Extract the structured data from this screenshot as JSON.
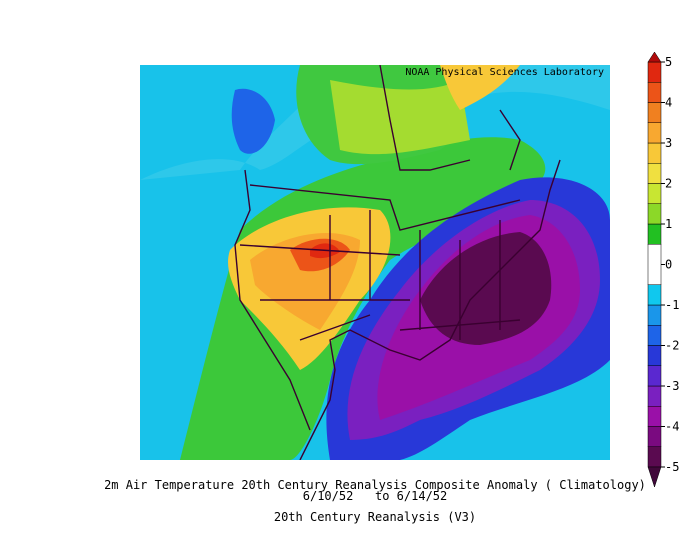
{
  "credit": "NOAA Physical Sciences Laboratory",
  "caption": [
    "2m Air Temperature 20th Century Reanalysis Composite Anomaly ( Climatology)",
    "6/10/52   to 6/14/52",
    "20th Century Reanalysis (V3)"
  ],
  "colorbar": {
    "levels": [
      -5,
      -4.5,
      -4,
      -3.5,
      -3,
      -2.5,
      -2,
      -1.5,
      -1,
      -0.5,
      0.5,
      1,
      1.5,
      2,
      2.5,
      3,
      3.5,
      4,
      4.5,
      5
    ],
    "colors": [
      "#5a0a50",
      "#7a0a80",
      "#9a10a8",
      "#7a20c0",
      "#5a28d0",
      "#2838d8",
      "#1e64e8",
      "#1a96ea",
      "#10c8ee",
      "#ffffff",
      "#22c022",
      "#8cd828",
      "#c8e632",
      "#f0e040",
      "#f8c838",
      "#f8a830",
      "#f08020",
      "#ec5418",
      "#e02810"
    ],
    "under_color": "#40083a",
    "over_color": "#b00a0a",
    "ticks": [
      -5,
      -4,
      -3,
      -2,
      -1,
      0,
      1,
      2,
      3,
      4,
      5
    ]
  }
}
